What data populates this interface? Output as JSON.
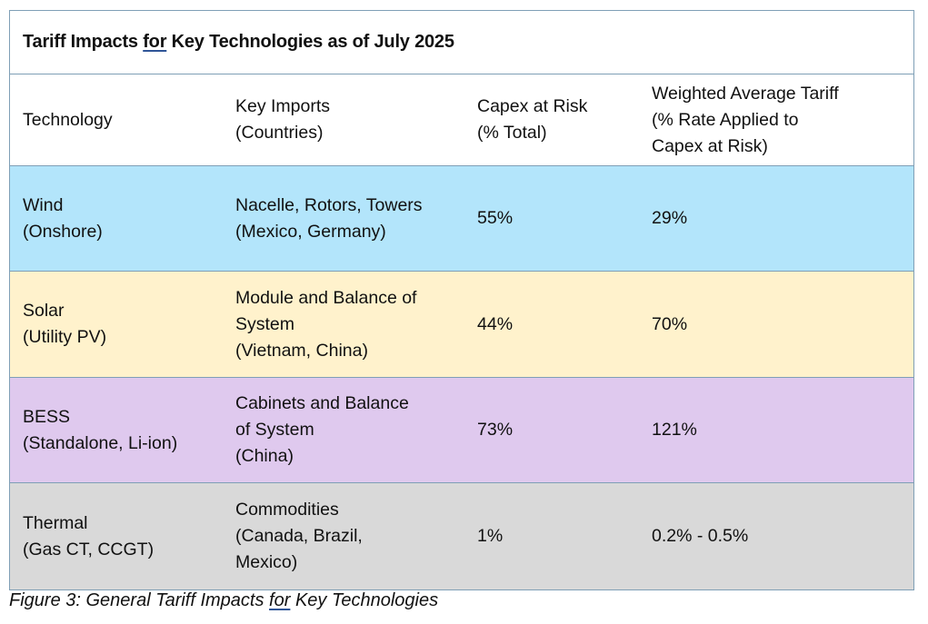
{
  "table": {
    "title_pre": "Tariff Impacts ",
    "title_link": "for",
    "title_post": " Key Technologies as of July 2025",
    "headers": [
      "Technology",
      "Key Imports\n(Countries)",
      "Capex at Risk\n(% Total)",
      "Weighted Average Tariff\n(% Rate Applied to\nCapex at Risk)"
    ],
    "rows": [
      {
        "technology": "Wind\n(Onshore)",
        "key_imports": "Nacelle, Rotors, Towers\n(Mexico, Germany)",
        "capex_at_risk": "55%",
        "weighted_avg_tariff": "29%",
        "color": "#b3e5fb"
      },
      {
        "technology": "Solar\n(Utility PV)",
        "key_imports": "Module and Balance of\nSystem\n(Vietnam, China)",
        "capex_at_risk": "44%",
        "weighted_avg_tariff": "70%",
        "color": "#fff2cc"
      },
      {
        "technology": "BESS\n(Standalone, Li-ion)",
        "key_imports": "Cabinets and Balance\nof System\n(China)",
        "capex_at_risk": "73%",
        "weighted_avg_tariff": "121%",
        "color": "#dfc9ee"
      },
      {
        "technology": "Thermal\n(Gas CT, CCGT)",
        "key_imports": "Commodities\n(Canada, Brazil,\nMexico)",
        "capex_at_risk": "1%",
        "weighted_avg_tariff": "0.2% - 0.5%",
        "color": "#d9d9d9"
      }
    ]
  },
  "caption": {
    "pre": "Figure 3: General Tariff Impacts ",
    "link": "for",
    "post": " Key Technologies"
  }
}
